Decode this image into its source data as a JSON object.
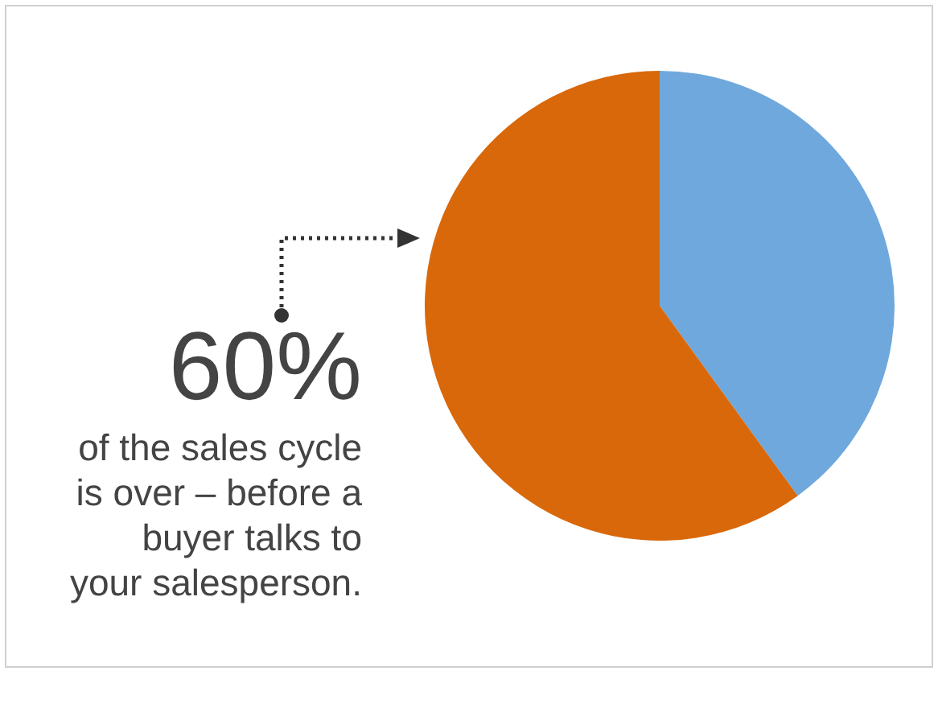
{
  "chart_data": {
    "type": "pie",
    "categories": [
      null,
      null
    ],
    "values": [
      40,
      60
    ],
    "colors": [
      "#6fa8dc",
      "#d9680b"
    ],
    "annotations": [
      "60%",
      "of the sales cycle is over – before a buyer talks to your salesperson."
    ]
  }
}
